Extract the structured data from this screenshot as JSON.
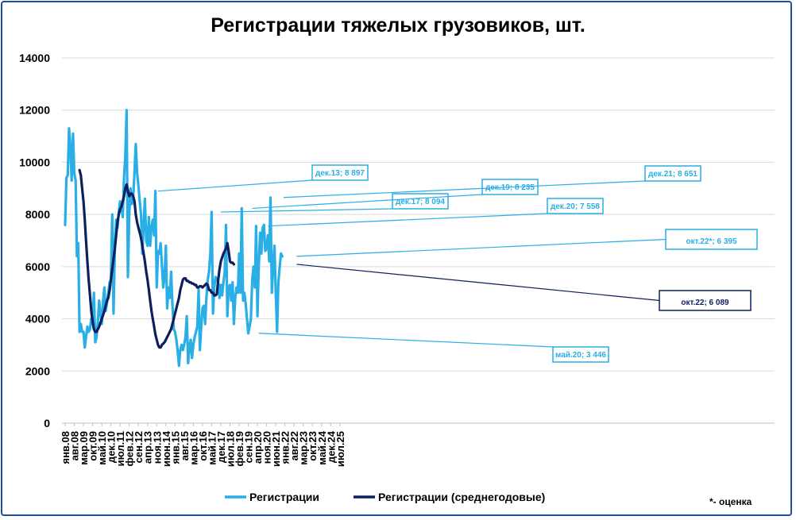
{
  "chart_data": {
    "type": "line",
    "title": "Регистрации тяжелых грузовиков, шт.",
    "ylim": [
      0,
      14000
    ],
    "yticks": [
      "0",
      "2000",
      "4000",
      "6000",
      "8000",
      "10000",
      "12000",
      "14000"
    ],
    "x_tick_labels": [
      "янв.08",
      "авг.08",
      "мар.09",
      "окт.09",
      "май.10",
      "дек.10",
      "июл.11",
      "фев.12",
      "сен.12",
      "апр.13",
      "ноя.13",
      "июн.14",
      "янв.15",
      "авг.15",
      "мар.16",
      "окт.16",
      "май.17",
      "дек.17",
      "июл.18",
      "фев.19",
      "сен.19",
      "апр.20",
      "ноя.20",
      "июн.21",
      "янв.22",
      "авг.22",
      "мар.23",
      "окт.23",
      "май.24",
      "дек.24",
      "июл.25"
    ],
    "x_start": "янв.08",
    "x_step": "month",
    "colors": {
      "monthly": "#29aee6",
      "average": "#0d1f5c"
    },
    "series": [
      {
        "name": "Регистрации",
        "values": [
          7600,
          9400,
          9500,
          11300,
          10600,
          9300,
          11100,
          9600,
          9300,
          6400,
          6900,
          3500,
          3800,
          3500,
          3500,
          2900,
          3300,
          3700,
          3500,
          3600,
          4000,
          4000,
          5000,
          3100,
          3300,
          3900,
          4700,
          4200,
          3800,
          4700,
          5200,
          4300,
          4600,
          5000,
          5400,
          5500,
          8000,
          4200,
          6800,
          7800,
          7500,
          8100,
          8500,
          8300,
          7900,
          9400,
          10200,
          12000,
          5600,
          8000,
          9000,
          8400,
          8600,
          9600,
          10700,
          9600,
          9100,
          8500,
          8000,
          6500,
          7600,
          8600,
          7000,
          6800,
          7900,
          6800,
          7500,
          7800,
          7200,
          8900,
          5200,
          6600,
          6500,
          6900,
          6000,
          5200,
          5600,
          6800,
          4400,
          5200,
          4800,
          5800,
          4600,
          3600,
          3500,
          3200,
          2800,
          2200,
          2800,
          3000,
          2800,
          3000,
          3300,
          4100,
          2300,
          2900,
          3200,
          2500,
          3000,
          3300,
          3500,
          3700,
          5100,
          2800,
          3700,
          4400,
          4500,
          3800,
          4800,
          5500,
          5800,
          6500,
          8094,
          4200,
          5200,
          5600,
          5500,
          5400,
          4800,
          5300,
          4900,
          5400,
          5800,
          7600,
          4100,
          5200,
          5300,
          4700,
          5400,
          3800,
          4800,
          5200,
          5000,
          6500,
          5000,
          8235,
          4700,
          5000,
          4600,
          4000,
          3446,
          3700,
          4000,
          5500,
          6000,
          5200,
          7558,
          4100,
          6000,
          7300,
          6500,
          7500,
          7600,
          6600,
          6700,
          7200,
          6200,
          8651,
          5000,
          6000,
          6800,
          5000,
          3500,
          5400,
          6000,
          6500,
          6395
        ]
      },
      {
        "name": "Регистрации (среднегодовые)",
        "start_index": 11,
        "values": [
          9700,
          9500,
          9000,
          8500,
          7800,
          7000,
          6200,
          5500,
          4900,
          4300,
          3900,
          3600,
          3500,
          3500,
          3600,
          3700,
          3850,
          4000,
          4150,
          4300,
          4500,
          4700,
          4800,
          5100,
          5500,
          5900,
          6300,
          6700,
          7200,
          7700,
          8000,
          8200,
          8300,
          8500,
          8700,
          9000,
          9150,
          8900,
          8700,
          8800,
          8800,
          8700,
          8500,
          8000,
          7700,
          7500,
          7300,
          7100,
          6800,
          6500,
          6200,
          5800,
          5500,
          5100,
          4700,
          4300,
          4000,
          3700,
          3400,
          3200,
          3000,
          2900,
          2900,
          3000,
          3050,
          3100,
          3200,
          3300,
          3400,
          3500,
          3600,
          3800,
          4000,
          4200,
          4400,
          4600,
          4800,
          5100,
          5300,
          5500,
          5550,
          5550,
          5450,
          5450,
          5400,
          5400,
          5350,
          5350,
          5300,
          5300,
          5200,
          5200,
          5250,
          5250,
          5200,
          5250,
          5300,
          5350,
          5300,
          5100,
          5100,
          5000,
          5000,
          4900,
          4900,
          4950,
          5500,
          5900,
          6200,
          6350,
          6500,
          6600,
          6700,
          6900,
          6600,
          6200,
          6150,
          6150,
          6089
        ]
      }
    ],
    "annotations": [
      {
        "label": "дек.13; 8 897",
        "index": 71,
        "value": 8897
      },
      {
        "label": "дек.17; 8 094",
        "index": 119,
        "value": 8094
      },
      {
        "label": "дек.19; 8 235",
        "index": 143,
        "value": 8235
      },
      {
        "label": "дек.20; 7 558",
        "index": 155,
        "value": 7558
      },
      {
        "label": "дек.21; 8 651",
        "index": 167,
        "value": 8651
      },
      {
        "label": "май.20; 3 446",
        "index": 148,
        "value": 3446
      },
      {
        "label": "окт.22*; 6 395",
        "index": 177,
        "value": 6395
      },
      {
        "label": "окт.22; 6 089",
        "index": 177,
        "value": 6089
      }
    ],
    "legend": [
      "Регистрации",
      "Регистрации (среднегодовые)"
    ],
    "note": "*- оценка",
    "grid": true
  }
}
